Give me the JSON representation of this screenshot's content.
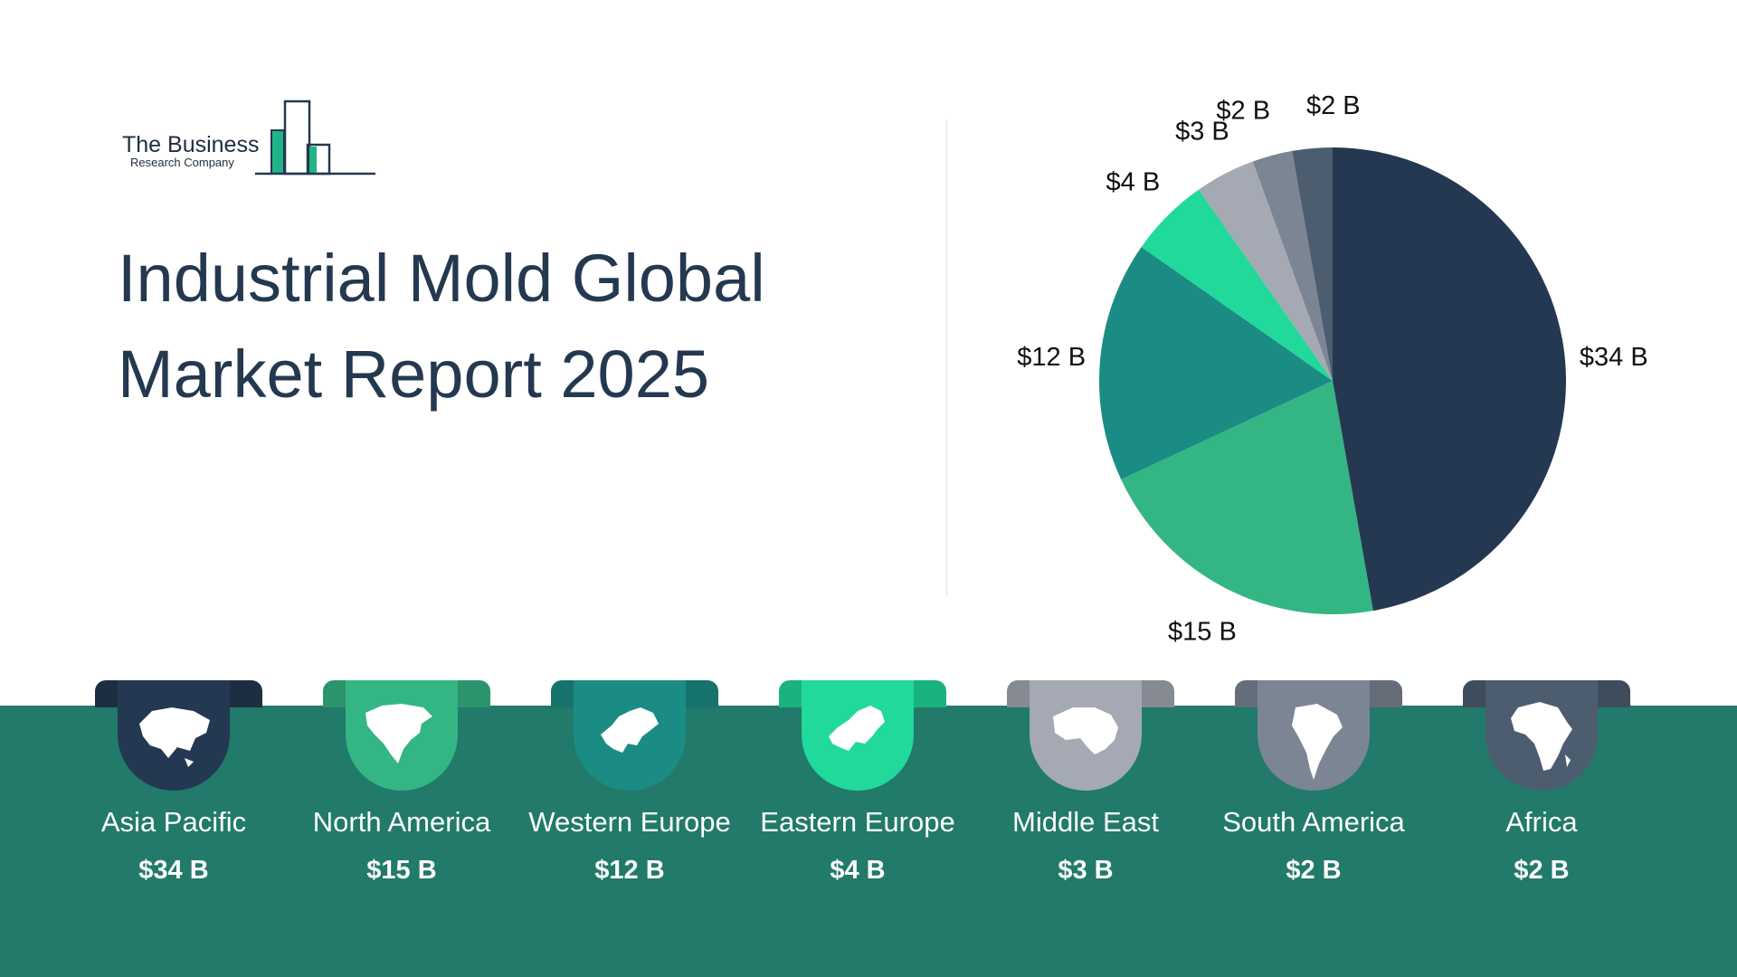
{
  "logo": {
    "line1": "The Business",
    "line2": "Research Company"
  },
  "title": {
    "line1": "Industrial Mold Global",
    "line2": "Market Report 2025"
  },
  "colors": {
    "navy": "#243851",
    "green": "#34b584",
    "teal": "#1b8c84",
    "mint": "#20d99b",
    "light_gray": "#a4a9b3",
    "gray": "#7b8594",
    "slate": "#4d5d70",
    "band": "#217a6a"
  },
  "chart_data": {
    "type": "pie",
    "unit": "$ B",
    "slices": [
      {
        "label": "$34  B",
        "value": 34,
        "color": "#243851"
      },
      {
        "label": "$15 B",
        "value": 15,
        "color": "#34b584"
      },
      {
        "label": "$12 B",
        "value": 12,
        "color": "#1b8c84"
      },
      {
        "label": "$4 B",
        "value": 4,
        "color": "#20d99b"
      },
      {
        "label": "$3 B",
        "value": 3,
        "color": "#a4a9b3"
      },
      {
        "label": "$2 B",
        "value": 2,
        "color": "#7b8594"
      },
      {
        "label": "$2 B",
        "value": 2,
        "color": "#4d5d70"
      }
    ]
  },
  "regions": [
    {
      "name": "Asia Pacific",
      "value": "$34 B",
      "color": "#243851",
      "icon": "asia-map-icon"
    },
    {
      "name": "North America",
      "value": "$15 B",
      "color": "#34b584",
      "icon": "north-america-map-icon"
    },
    {
      "name": "Western Europe",
      "value": "$12 B",
      "color": "#1b8c84",
      "icon": "western-europe-map-icon"
    },
    {
      "name": "Eastern Europe",
      "value": "$4 B",
      "color": "#20d99b",
      "icon": "eastern-europe-map-icon"
    },
    {
      "name": "Middle East",
      "value": "$3 B",
      "color": "#a4a9b3",
      "icon": "middle-east-map-icon"
    },
    {
      "name": "South America",
      "value": "$2 B",
      "color": "#7b8594",
      "icon": "south-america-map-icon"
    },
    {
      "name": "Africa",
      "value": "$2 B",
      "color": "#4d5d70",
      "icon": "africa-map-icon"
    }
  ]
}
